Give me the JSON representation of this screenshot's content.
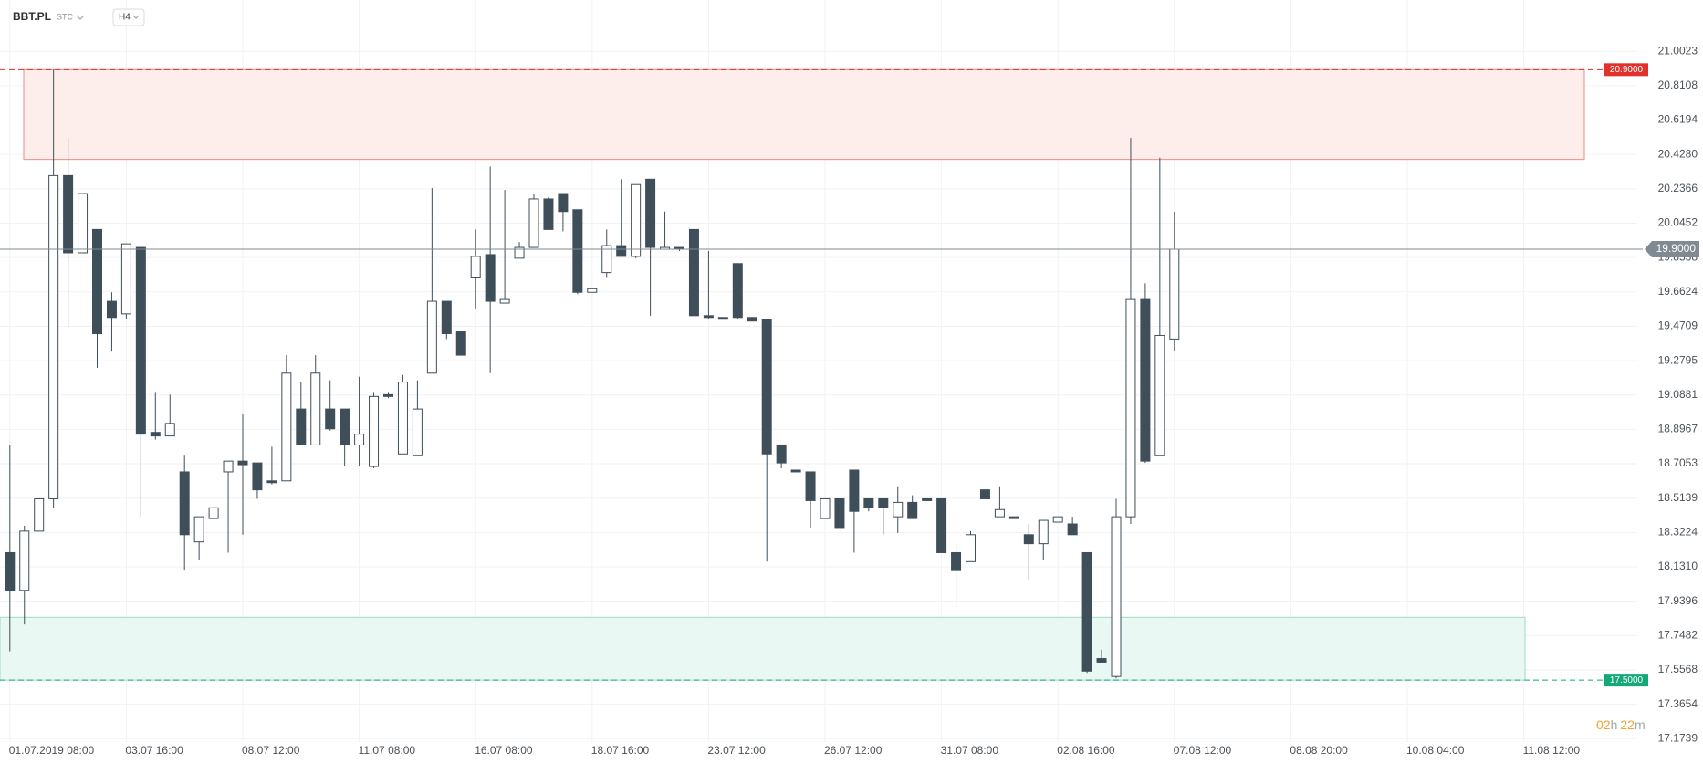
{
  "chart_data": {
    "type": "candlestick",
    "symbol": "BBT.PL",
    "market": "STC",
    "interval": "H4",
    "categories": [
      "01.07.2019 08:00",
      null,
      null,
      null,
      null,
      null,
      null,
      null,
      "03.07 16:00",
      null,
      null,
      null,
      null,
      null,
      null,
      null,
      "08.07 12:00",
      null,
      null,
      null,
      null,
      null,
      null,
      null,
      "11.07 08:00",
      null,
      null,
      null,
      null,
      null,
      null,
      null,
      "16.07 08:00",
      null,
      null,
      null,
      null,
      null,
      null,
      null,
      "18.07 16:00",
      null,
      null,
      null,
      null,
      null,
      null,
      null,
      "23.07 12:00",
      null,
      null,
      null,
      null,
      null,
      null,
      null,
      "26.07 12:00",
      null,
      null,
      null,
      null,
      null,
      null,
      null,
      "31.07 08:00",
      null,
      null,
      null,
      null,
      null,
      null,
      null,
      "02.08 16:00",
      null,
      null,
      null,
      null,
      null,
      null,
      null,
      "07.08 12:00",
      null,
      null,
      null,
      null,
      null,
      null,
      null,
      "08.08 20:00",
      null,
      null,
      null,
      null,
      null,
      null,
      null,
      "10.08 04:00",
      null,
      null,
      null,
      null,
      null,
      null,
      null,
      "11.08 12:00"
    ],
    "open": [
      18.21,
      18.0,
      18.33,
      18.51,
      20.31,
      19.88,
      20.01,
      19.61,
      19.54,
      19.91,
      18.88,
      18.86,
      18.66,
      18.27,
      18.4,
      18.66,
      18.72,
      18.71,
      18.61,
      18.61,
      19.01,
      18.81,
      19.01,
      19.01,
      18.81,
      18.69,
      19.09,
      18.76,
      18.75,
      19.21,
      19.61,
      19.44,
      19.74,
      19.87,
      19.6,
      19.85,
      19.91,
      20.18,
      20.21,
      20.12,
      19.66,
      19.77,
      19.92,
      19.86,
      20.29,
      19.9,
      19.91,
      20.01,
      19.53,
      19.52,
      19.82,
      19.52,
      19.51,
      18.81,
      18.67,
      18.66,
      18.4,
      18.51,
      18.67,
      18.51,
      18.51,
      18.41,
      18.49,
      18.51,
      18.51,
      18.21,
      18.16,
      18.56,
      18.41,
      18.41,
      18.31,
      18.26,
      18.38,
      18.37,
      18.21,
      17.62,
      17.52,
      18.41,
      19.62,
      18.75,
      19.4,
      null,
      null,
      null,
      null,
      null,
      null,
      null,
      null,
      null,
      null,
      null,
      null,
      null,
      null,
      null,
      null,
      null,
      null,
      null,
      null,
      null,
      null,
      null,
      null
    ],
    "high": [
      18.81,
      18.36,
      18.51,
      20.9,
      20.52,
      20.21,
      20.01,
      19.66,
      19.93,
      19.92,
      19.1,
      19.09,
      18.75,
      18.41,
      18.46,
      18.72,
      18.98,
      18.71,
      18.8,
      19.31,
      19.16,
      19.31,
      19.17,
      19.01,
      19.19,
      19.1,
      19.1,
      19.2,
      19.17,
      20.24,
      19.61,
      19.44,
      20.01,
      20.36,
      20.23,
      19.94,
      20.21,
      20.19,
      20.21,
      20.12,
      19.68,
      20.01,
      20.29,
      20.26,
      20.29,
      20.11,
      19.91,
      20.01,
      19.89,
      19.52,
      19.82,
      19.52,
      19.51,
      18.81,
      18.67,
      18.66,
      18.51,
      18.51,
      18.67,
      18.51,
      18.51,
      18.58,
      18.53,
      18.51,
      18.51,
      18.26,
      18.33,
      18.56,
      18.58,
      18.41,
      18.37,
      18.39,
      18.41,
      18.41,
      18.21,
      17.67,
      18.51,
      20.52,
      19.71,
      20.41,
      20.11,
      null,
      null,
      null,
      null,
      null,
      null,
      null,
      null,
      null,
      null,
      null,
      null,
      null,
      null,
      null,
      null,
      null,
      null,
      null,
      null,
      null,
      null,
      null,
      null
    ],
    "low": [
      17.66,
      17.81,
      18.33,
      18.46,
      19.47,
      19.88,
      19.24,
      19.33,
      19.51,
      18.41,
      18.84,
      18.86,
      18.11,
      18.17,
      18.4,
      18.21,
      18.31,
      18.51,
      18.59,
      18.61,
      18.81,
      18.81,
      18.89,
      18.69,
      18.69,
      18.68,
      19.07,
      18.76,
      18.75,
      19.21,
      19.4,
      19.31,
      19.57,
      19.21,
      19.6,
      19.85,
      19.91,
      20.01,
      20.0,
      19.65,
      19.66,
      19.74,
      19.86,
      19.85,
      19.53,
      19.9,
      19.89,
      19.53,
      19.51,
      19.51,
      19.51,
      19.5,
      18.16,
      18.68,
      18.66,
      18.35,
      18.4,
      18.35,
      18.21,
      18.44,
      18.31,
      18.32,
      18.4,
      18.5,
      18.21,
      17.91,
      18.16,
      18.51,
      18.41,
      18.4,
      18.06,
      18.17,
      18.38,
      18.31,
      17.54,
      17.6,
      17.51,
      18.37,
      18.71,
      18.75,
      19.33,
      null,
      null,
      null,
      null,
      null,
      null,
      null,
      null,
      null,
      null,
      null,
      null,
      null,
      null,
      null,
      null,
      null,
      null,
      null,
      null,
      null,
      null,
      null,
      null
    ],
    "close": [
      18.0,
      18.33,
      18.51,
      20.31,
      19.88,
      20.21,
      19.43,
      19.52,
      19.93,
      18.87,
      18.86,
      18.93,
      18.31,
      18.41,
      18.46,
      18.72,
      18.7,
      18.56,
      18.6,
      19.21,
      18.81,
      19.21,
      18.9,
      18.81,
      18.87,
      19.08,
      19.08,
      19.16,
      19.01,
      19.61,
      19.43,
      19.31,
      19.86,
      19.61,
      19.62,
      19.91,
      20.18,
      20.01,
      20.11,
      19.66,
      19.68,
      19.92,
      19.86,
      20.26,
      19.91,
      19.91,
      19.9,
      19.53,
      19.52,
      19.51,
      19.52,
      19.5,
      18.76,
      18.71,
      18.66,
      18.5,
      18.51,
      18.35,
      18.44,
      18.46,
      18.46,
      18.49,
      18.4,
      18.5,
      18.21,
      18.11,
      18.31,
      18.51,
      18.45,
      18.4,
      18.26,
      18.39,
      18.41,
      18.31,
      17.55,
      17.6,
      18.41,
      19.62,
      18.72,
      19.42,
      19.9,
      null,
      null,
      null,
      null,
      null,
      null,
      null,
      null,
      null,
      null,
      null,
      null,
      null,
      null,
      null,
      null,
      null,
      null,
      null,
      null,
      null,
      null,
      null,
      null
    ],
    "up_color": "#ffffff",
    "down_color": "#3f4f5a",
    "outline_color": "#3f4f5a",
    "ylim": [
      17.155,
      21.227
    ],
    "yticks": [
      21.0023,
      20.8108,
      20.6194,
      {
        "value": 20.428,
        "label": "20.4280"
      },
      20.2366,
      20.0452,
      19.8538,
      19.6624,
      19.4709,
      19.2795,
      19.0881,
      18.8967,
      18.7053,
      18.5139,
      18.3224,
      {
        "value": 18.131,
        "label": "18.1310"
      },
      17.9396,
      17.7482,
      17.5568,
      17.3654,
      17.1739
    ],
    "grid": true,
    "zones": [
      {
        "top": 20.9,
        "bottom": 20.4,
        "fill": "#fdeeec",
        "stroke": "#ec8a84"
      },
      {
        "top": 17.85,
        "bottom": 17.5,
        "fill": "#e9f8f2",
        "stroke": "#9edcc5"
      }
    ],
    "levels": [
      {
        "value": 20.9,
        "label": "20.9000",
        "color": "#e0312b"
      },
      {
        "value": 17.5,
        "label": "17.5000",
        "color": "#14a878"
      }
    ],
    "last_price": {
      "value": 19.9,
      "label": "19.9000",
      "color": "#7f8a93"
    },
    "timer": {
      "hours": "02",
      "hours_unit": "h",
      "minutes": "22",
      "minutes_unit": "m"
    }
  }
}
